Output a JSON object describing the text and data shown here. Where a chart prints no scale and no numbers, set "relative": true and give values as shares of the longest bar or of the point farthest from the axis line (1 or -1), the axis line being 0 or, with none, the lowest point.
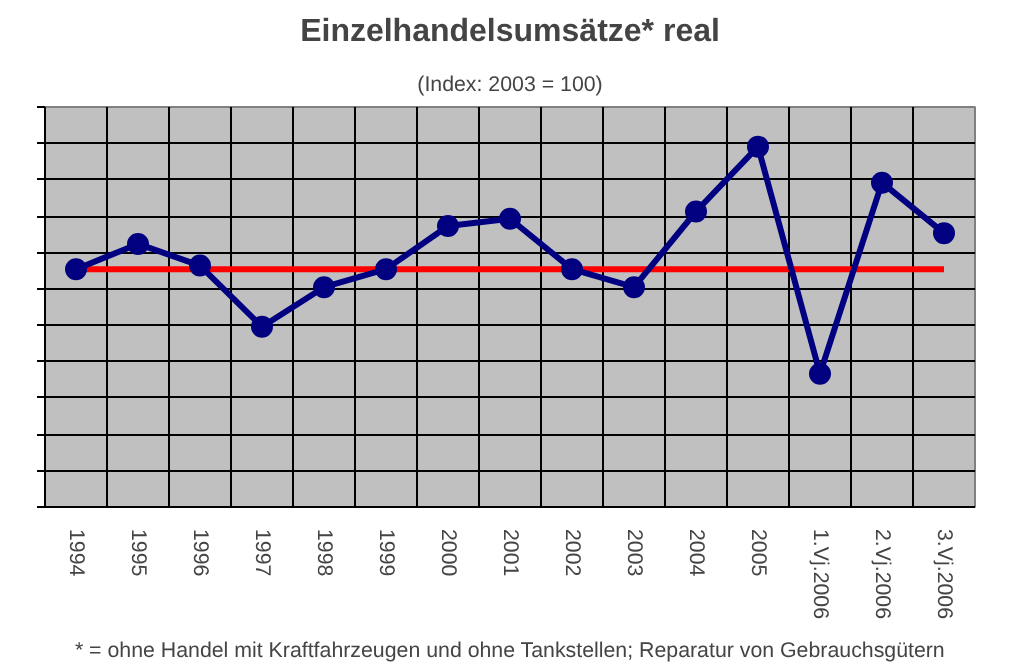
{
  "chart_data": {
    "type": "line",
    "title": "Einzelhandelsumsätze* real",
    "subtitle": "(Index: 2003 = 100)",
    "categories": [
      "1994",
      "1995",
      "1996",
      "1997",
      "1998",
      "1999",
      "2000",
      "2001",
      "2002",
      "2003",
      "2004",
      "2005",
      "1.Vj.2006",
      "2.Vj.2006",
      "3.Vj.2006"
    ],
    "series": [
      {
        "color": "#000080",
        "values": [
          0.66,
          0.73,
          0.67,
          0.5,
          0.61,
          0.66,
          0.78,
          0.8,
          0.66,
          0.61,
          0.82,
          1.0,
          0.37,
          0.9,
          0.76
        ]
      }
    ],
    "relative": true,
    "marker": "circle",
    "line_style": "solid",
    "grid": true,
    "tick_labels": "x",
    "ref_lines": [
      {
        "axis": "y",
        "value": 0.66,
        "color": "#ff0000"
      }
    ],
    "annotations": [
      "* = ohne Handel mit Kraftfahrzeugen und ohne Tankstellen; Reparatur von Gebrauchsgütern"
    ]
  }
}
